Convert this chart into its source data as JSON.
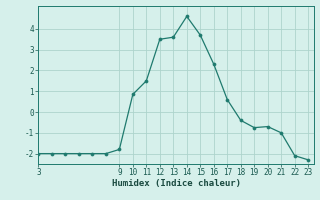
{
  "x": [
    3,
    4,
    5,
    6,
    7,
    8,
    9,
    10,
    11,
    12,
    13,
    14,
    15,
    16,
    17,
    18,
    19,
    20,
    21,
    22,
    23
  ],
  "y": [
    -2,
    -2,
    -2,
    -2,
    -2,
    -2,
    -1.8,
    0.85,
    1.5,
    3.5,
    3.6,
    4.6,
    3.7,
    2.3,
    0.6,
    -0.4,
    -0.75,
    -0.7,
    -1.0,
    -2.1,
    -2.3
  ],
  "line_color": "#1f7a6e",
  "marker_color": "#1f7a6e",
  "bg_color": "#d6f0eb",
  "grid_color": "#aed4cc",
  "xlabel": "Humidex (Indice chaleur)",
  "xticks": [
    3,
    9,
    10,
    11,
    12,
    13,
    14,
    15,
    16,
    17,
    18,
    19,
    20,
    21,
    22,
    23
  ],
  "yticks": [
    -2,
    -1,
    0,
    1,
    2,
    3,
    4
  ],
  "xlim": [
    3,
    23.4
  ],
  "ylim": [
    -2.5,
    5.1
  ],
  "tick_fontsize": 5.5,
  "xlabel_fontsize": 6.5,
  "tick_color": "#1a5a50",
  "xlabel_color": "#1a4a40"
}
